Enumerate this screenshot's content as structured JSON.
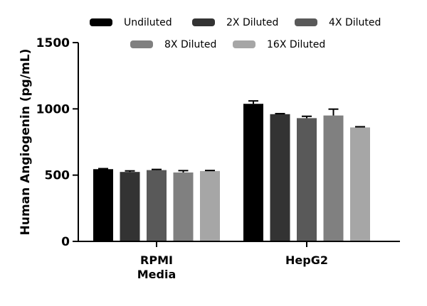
{
  "chart_data": {
    "type": "bar",
    "categories": [
      [
        "RPMI",
        "Media"
      ],
      [
        "HepG2"
      ]
    ],
    "series": [
      {
        "name": "Undiluted",
        "color": "#000000",
        "values": [
          545,
          1038
        ],
        "errors": [
          4,
          22
        ]
      },
      {
        "name": "2X Diluted",
        "color": "#333333",
        "values": [
          524,
          960
        ],
        "errors": [
          8,
          4
        ]
      },
      {
        "name": "4X Diluted",
        "color": "#595959",
        "values": [
          538,
          930
        ],
        "errors": [
          5,
          14
        ]
      },
      {
        "name": "8X Diluted",
        "color": "#808080",
        "values": [
          520,
          950
        ],
        "errors": [
          14,
          48
        ]
      },
      {
        "name": "16X Diluted",
        "color": "#a6a6a6",
        "values": [
          531,
          860
        ],
        "errors": [
          4,
          5
        ]
      }
    ],
    "ylabel": "Human  Angiogenin (pg/mL)",
    "ylim": [
      0,
      1500
    ],
    "yticks": [
      0,
      500,
      1000,
      1500
    ],
    "grid": false,
    "legend_position": "top"
  }
}
